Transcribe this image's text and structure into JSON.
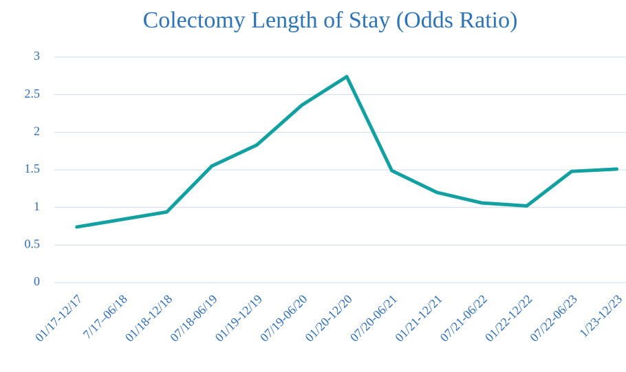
{
  "chart_data": {
    "type": "line",
    "title": "Colectomy Length of Stay (Odds Ratio)",
    "categories": [
      "01/17-12/17",
      "7/17–06/18",
      "01/18-12/18",
      "07/18-06/19",
      "01/19-12/19",
      "07/19-06/20",
      "01/20-12/20",
      "07/20-06/21",
      "01/21-12/21",
      "07/21-06/22",
      "01/22-12/22",
      "07/22-06/23",
      "1/23-12/23"
    ],
    "series": [
      {
        "name": "Odds Ratio",
        "color": "#13a0a0",
        "values": [
          0.74,
          0.84,
          0.94,
          1.55,
          1.83,
          2.36,
          2.74,
          1.49,
          1.2,
          1.06,
          1.02,
          1.48,
          1.51
        ]
      }
    ],
    "ylim": [
      0,
      3
    ],
    "yticks": [
      0,
      0.5,
      1,
      1.5,
      2,
      2.5,
      3
    ],
    "grid": true
  }
}
